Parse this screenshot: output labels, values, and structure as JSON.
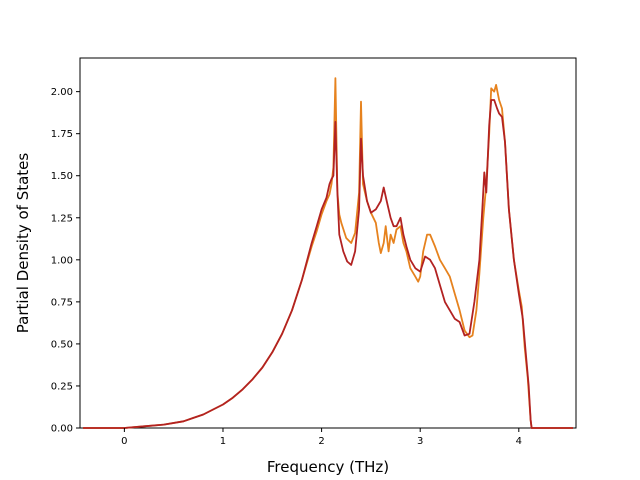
{
  "chart_data": {
    "type": "line",
    "title": "",
    "xlabel": "Frequency (THz)",
    "ylabel": "Partial Density of States",
    "xlim": [
      -0.45,
      4.58
    ],
    "ylim": [
      0.0,
      2.2
    ],
    "xticks": [
      0,
      1,
      2,
      3,
      4
    ],
    "yticks": [
      0.0,
      0.25,
      0.5,
      0.75,
      1.0,
      1.25,
      1.5,
      1.75,
      2.0
    ],
    "xtick_labels": [
      "0",
      "1",
      "2",
      "3",
      "4"
    ],
    "ytick_labels": [
      "0.00",
      "0.25",
      "0.50",
      "0.75",
      "1.00",
      "1.25",
      "1.50",
      "1.75",
      "2.00"
    ],
    "grid": false,
    "legend": "none",
    "series": [
      {
        "color": "#e6821e",
        "points": [
          [
            -0.42,
            0.0
          ],
          [
            0.0,
            0.0
          ],
          [
            0.2,
            0.01
          ],
          [
            0.4,
            0.02
          ],
          [
            0.6,
            0.04
          ],
          [
            0.7,
            0.06
          ],
          [
            0.8,
            0.08
          ],
          [
            0.9,
            0.11
          ],
          [
            1.0,
            0.14
          ],
          [
            1.1,
            0.18
          ],
          [
            1.2,
            0.23
          ],
          [
            1.3,
            0.29
          ],
          [
            1.4,
            0.36
          ],
          [
            1.5,
            0.45
          ],
          [
            1.6,
            0.56
          ],
          [
            1.7,
            0.7
          ],
          [
            1.8,
            0.88
          ],
          [
            1.9,
            1.08
          ],
          [
            1.95,
            1.17
          ],
          [
            2.0,
            1.27
          ],
          [
            2.05,
            1.35
          ],
          [
            2.08,
            1.39
          ],
          [
            2.1,
            1.45
          ],
          [
            2.12,
            1.55
          ],
          [
            2.14,
            2.08
          ],
          [
            2.16,
            1.4
          ],
          [
            2.18,
            1.27
          ],
          [
            2.2,
            1.22
          ],
          [
            2.25,
            1.13
          ],
          [
            2.3,
            1.1
          ],
          [
            2.34,
            1.16
          ],
          [
            2.38,
            1.4
          ],
          [
            2.4,
            1.94
          ],
          [
            2.42,
            1.45
          ],
          [
            2.46,
            1.35
          ],
          [
            2.5,
            1.28
          ],
          [
            2.55,
            1.22
          ],
          [
            2.58,
            1.1
          ],
          [
            2.6,
            1.04
          ],
          [
            2.63,
            1.1
          ],
          [
            2.65,
            1.2
          ],
          [
            2.68,
            1.05
          ],
          [
            2.7,
            1.15
          ],
          [
            2.73,
            1.1
          ],
          [
            2.76,
            1.18
          ],
          [
            2.8,
            1.2
          ],
          [
            2.83,
            1.1
          ],
          [
            2.86,
            1.05
          ],
          [
            2.9,
            0.95
          ],
          [
            2.95,
            0.9
          ],
          [
            2.98,
            0.87
          ],
          [
            3.0,
            0.9
          ],
          [
            3.03,
            1.05
          ],
          [
            3.07,
            1.15
          ],
          [
            3.1,
            1.15
          ],
          [
            3.15,
            1.08
          ],
          [
            3.2,
            1.0
          ],
          [
            3.25,
            0.95
          ],
          [
            3.3,
            0.9
          ],
          [
            3.35,
            0.8
          ],
          [
            3.4,
            0.7
          ],
          [
            3.45,
            0.58
          ],
          [
            3.5,
            0.54
          ],
          [
            3.53,
            0.55
          ],
          [
            3.57,
            0.7
          ],
          [
            3.6,
            0.92
          ],
          [
            3.64,
            1.25
          ],
          [
            3.67,
            1.45
          ],
          [
            3.7,
            1.75
          ],
          [
            3.72,
            2.02
          ],
          [
            3.75,
            2.0
          ],
          [
            3.77,
            2.04
          ],
          [
            3.8,
            1.95
          ],
          [
            3.83,
            1.9
          ],
          [
            3.86,
            1.7
          ],
          [
            3.9,
            1.3
          ],
          [
            3.95,
            1.0
          ],
          [
            4.0,
            0.82
          ],
          [
            4.03,
            0.72
          ],
          [
            4.06,
            0.48
          ],
          [
            4.09,
            0.3
          ],
          [
            4.12,
            0.05
          ],
          [
            4.13,
            0.0
          ],
          [
            4.55,
            0.0
          ]
        ]
      },
      {
        "color": "#b22222",
        "points": [
          [
            -0.42,
            0.0
          ],
          [
            0.0,
            0.0
          ],
          [
            0.2,
            0.01
          ],
          [
            0.4,
            0.02
          ],
          [
            0.6,
            0.04
          ],
          [
            0.7,
            0.06
          ],
          [
            0.8,
            0.08
          ],
          [
            0.9,
            0.11
          ],
          [
            1.0,
            0.14
          ],
          [
            1.1,
            0.18
          ],
          [
            1.2,
            0.23
          ],
          [
            1.3,
            0.29
          ],
          [
            1.4,
            0.36
          ],
          [
            1.5,
            0.45
          ],
          [
            1.6,
            0.56
          ],
          [
            1.7,
            0.7
          ],
          [
            1.8,
            0.88
          ],
          [
            1.9,
            1.1
          ],
          [
            1.95,
            1.2
          ],
          [
            2.0,
            1.3
          ],
          [
            2.05,
            1.37
          ],
          [
            2.08,
            1.45
          ],
          [
            2.1,
            1.48
          ],
          [
            2.12,
            1.5
          ],
          [
            2.14,
            1.82
          ],
          [
            2.16,
            1.4
          ],
          [
            2.18,
            1.15
          ],
          [
            2.22,
            1.05
          ],
          [
            2.26,
            0.99
          ],
          [
            2.3,
            0.97
          ],
          [
            2.34,
            1.05
          ],
          [
            2.38,
            1.3
          ],
          [
            2.4,
            1.72
          ],
          [
            2.42,
            1.5
          ],
          [
            2.46,
            1.35
          ],
          [
            2.5,
            1.28
          ],
          [
            2.55,
            1.3
          ],
          [
            2.6,
            1.35
          ],
          [
            2.63,
            1.43
          ],
          [
            2.66,
            1.35
          ],
          [
            2.7,
            1.25
          ],
          [
            2.73,
            1.2
          ],
          [
            2.76,
            1.2
          ],
          [
            2.8,
            1.25
          ],
          [
            2.83,
            1.15
          ],
          [
            2.86,
            1.08
          ],
          [
            2.9,
            1.0
          ],
          [
            2.95,
            0.95
          ],
          [
            3.0,
            0.93
          ],
          [
            3.05,
            1.02
          ],
          [
            3.1,
            1.0
          ],
          [
            3.15,
            0.95
          ],
          [
            3.2,
            0.85
          ],
          [
            3.25,
            0.75
          ],
          [
            3.3,
            0.7
          ],
          [
            3.35,
            0.65
          ],
          [
            3.4,
            0.63
          ],
          [
            3.45,
            0.55
          ],
          [
            3.5,
            0.56
          ],
          [
            3.55,
            0.75
          ],
          [
            3.6,
            1.0
          ],
          [
            3.63,
            1.3
          ],
          [
            3.65,
            1.52
          ],
          [
            3.67,
            1.4
          ],
          [
            3.7,
            1.8
          ],
          [
            3.72,
            1.95
          ],
          [
            3.75,
            1.95
          ],
          [
            3.78,
            1.9
          ],
          [
            3.8,
            1.87
          ],
          [
            3.83,
            1.85
          ],
          [
            3.86,
            1.7
          ],
          [
            3.9,
            1.3
          ],
          [
            3.95,
            1.0
          ],
          [
            4.0,
            0.8
          ],
          [
            4.04,
            0.65
          ],
          [
            4.07,
            0.45
          ],
          [
            4.1,
            0.25
          ],
          [
            4.12,
            0.05
          ],
          [
            4.13,
            0.0
          ],
          [
            4.55,
            0.0
          ]
        ]
      }
    ]
  }
}
